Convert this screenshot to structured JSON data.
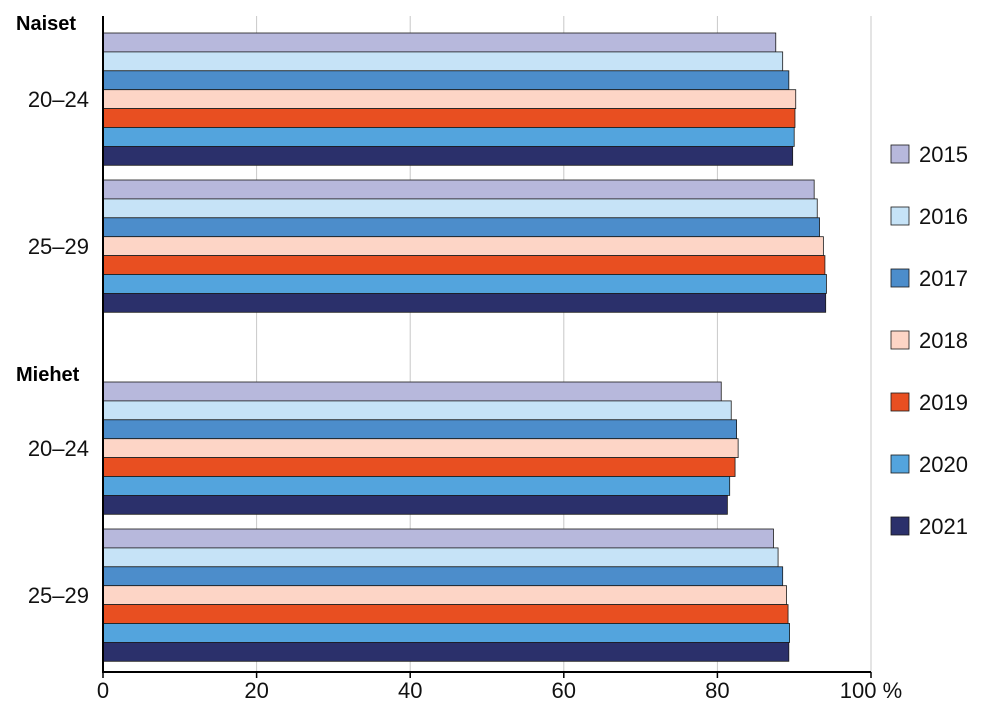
{
  "chart_data": {
    "type": "bar",
    "orientation": "horizontal",
    "title": "",
    "xlabel": "",
    "ylabel": "",
    "xlim": [
      0,
      100
    ],
    "x_ticks": [
      "0",
      "20",
      "40",
      "60",
      "80",
      "100 %"
    ],
    "x_tick_values": [
      0,
      20,
      40,
      60,
      80,
      100
    ],
    "grid": true,
    "legend_position": "right",
    "groups": [
      {
        "label": "Naiset",
        "categories": [
          "20–24",
          "25–29"
        ]
      },
      {
        "label": "Miehet",
        "categories": [
          "20–24",
          "25–29"
        ]
      }
    ],
    "series": [
      {
        "name": "2015",
        "color": "#b7b8dc",
        "values": [
          87.6,
          92.6,
          80.5,
          87.3
        ]
      },
      {
        "name": "2016",
        "color": "#c6e3f7",
        "values": [
          88.5,
          93.0,
          81.8,
          87.9
        ]
      },
      {
        "name": "2017",
        "color": "#4c8dcb",
        "values": [
          89.3,
          93.3,
          82.5,
          88.5
        ]
      },
      {
        "name": "2018",
        "color": "#fdd5c6",
        "values": [
          90.2,
          93.8,
          82.7,
          89.0
        ]
      },
      {
        "name": "2019",
        "color": "#e84f21",
        "values": [
          90.1,
          94.0,
          82.3,
          89.2
        ]
      },
      {
        "name": "2020",
        "color": "#53a4dd",
        "values": [
          90.0,
          94.2,
          81.6,
          89.4
        ]
      },
      {
        "name": "2021",
        "color": "#2b306b",
        "values": [
          89.8,
          94.1,
          81.3,
          89.3
        ]
      }
    ]
  }
}
